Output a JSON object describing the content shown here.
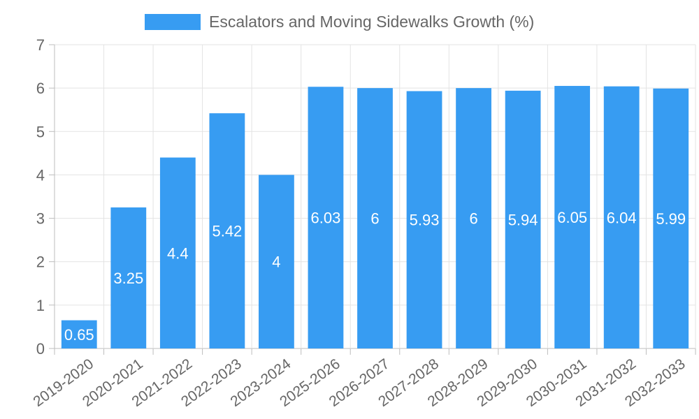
{
  "chart_data": {
    "type": "bar",
    "title": "",
    "xlabel": "",
    "ylabel": "",
    "legend_position": "top-center",
    "grid": true,
    "ylim": [
      0,
      7
    ],
    "yticks": [
      0,
      1,
      2,
      3,
      4,
      5,
      6,
      7
    ],
    "categories": [
      "2019-2020",
      "2020-2021",
      "2021-2022",
      "2022-2023",
      "2023-2024",
      "2025-2026",
      "2026-2027",
      "2027-2028",
      "2028-2029",
      "2029-2030",
      "2030-2031",
      "2031-2032",
      "2032-2033"
    ],
    "series": [
      {
        "name": "Escalators and Moving Sidewalks Growth (%)",
        "color": "#379cf2",
        "values": [
          0.65,
          3.25,
          4.4,
          5.42,
          4,
          6.03,
          6,
          5.93,
          6,
          5.94,
          6.05,
          6.04,
          5.99
        ],
        "labels": [
          "0.65",
          "3.25",
          "4.4",
          "5.42",
          "4",
          "6.03",
          "6",
          "5.93",
          "6",
          "5.94",
          "6.05",
          "6.04",
          "5.99"
        ]
      }
    ]
  }
}
